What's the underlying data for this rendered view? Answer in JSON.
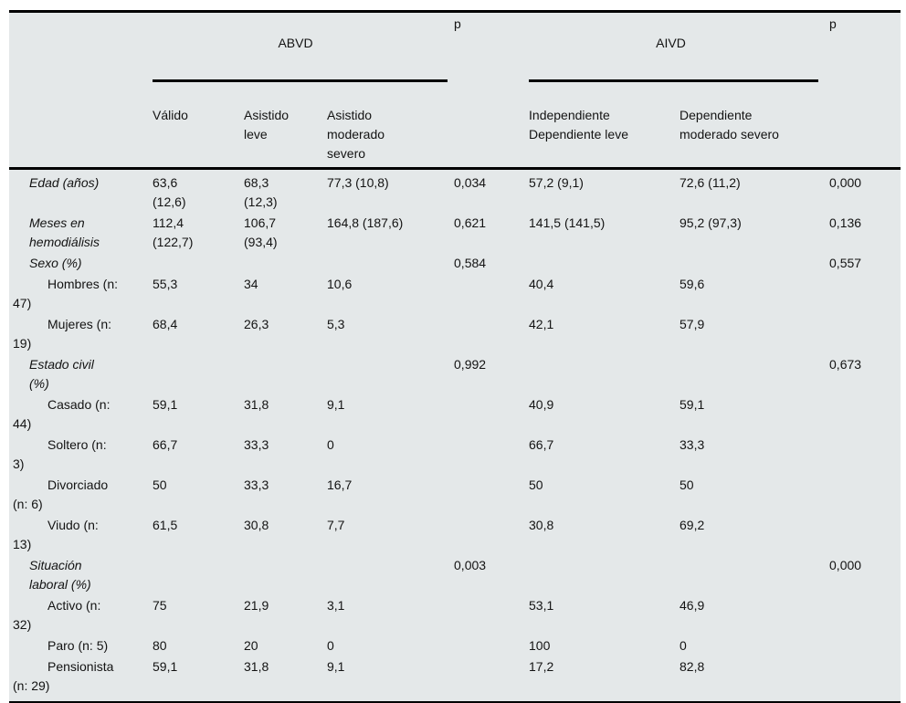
{
  "table": {
    "group_header": {
      "abvd": "ABVD",
      "p_left": "p",
      "aivd": "AIVD",
      "p_right": "p"
    },
    "column_headers": {
      "abvd": [
        "Válido",
        "Asistido\nleve",
        "Asistido\nmoderado\nsevero"
      ],
      "aivd": [
        "Independiente\nDependiente leve",
        "Dependiente\nmoderado severo"
      ]
    },
    "rows": [
      {
        "label": "Edad (años)",
        "variant": "category",
        "cells": [
          "63,6\n(12,6)",
          "68,3\n(12,3)",
          "77,3 (10,8)",
          "0,034",
          "57,2 (9,1)",
          "72,6 (11,2)",
          "0,000"
        ]
      },
      {
        "label": "Meses en\nhemodiálisis",
        "variant": "category",
        "cells": [
          "112,4\n(122,7)",
          "106,7\n(93,4)",
          "164,8 (187,6)",
          "0,621",
          "141,5 (141,5)",
          "95,2 (97,3)",
          "0,136"
        ]
      },
      {
        "label": "Sexo (%)",
        "variant": "category",
        "cells": [
          "",
          "",
          "",
          "0,584",
          "",
          "",
          "0,557"
        ]
      },
      {
        "label": "Hombres (n:\n47)",
        "variant": "item",
        "cells": [
          "55,3",
          "34",
          "10,6",
          "",
          "40,4",
          "59,6",
          ""
        ]
      },
      {
        "label": "Mujeres (n:\n19)",
        "variant": "item",
        "cells": [
          "68,4",
          "26,3",
          "5,3",
          "",
          "42,1",
          "57,9",
          ""
        ]
      },
      {
        "label": "Estado civil\n(%)",
        "variant": "category",
        "cells": [
          "",
          "",
          "",
          "0,992",
          "",
          "",
          "0,673"
        ]
      },
      {
        "label": "Casado (n:\n44)",
        "variant": "item",
        "cells": [
          "59,1",
          "31,8",
          "9,1",
          "",
          "40,9",
          "59,1",
          ""
        ]
      },
      {
        "label": "Soltero (n:\n3)",
        "variant": "item",
        "cells": [
          "66,7",
          "33,3",
          "0",
          "",
          "66,7",
          "33,3",
          ""
        ]
      },
      {
        "label": "Divorciado\n(n: 6)",
        "variant": "item",
        "cells": [
          "50",
          "33,3",
          "16,7",
          "",
          "50",
          "50",
          ""
        ]
      },
      {
        "label": "Viudo (n:\n13)",
        "variant": "item",
        "cells": [
          "61,5",
          "30,8",
          "7,7",
          "",
          "30,8",
          "69,2",
          ""
        ]
      },
      {
        "label": "Situación\nlaboral (%)",
        "variant": "category",
        "cells": [
          "",
          "",
          "",
          "0,003",
          "",
          "",
          "0,000"
        ]
      },
      {
        "label": "Activo (n:\n32)",
        "variant": "item",
        "cells": [
          "75",
          "21,9",
          "3,1",
          "",
          "53,1",
          "46,9",
          ""
        ]
      },
      {
        "label": "Paro (n: 5)",
        "variant": "item",
        "cells": [
          "80",
          "20",
          "0",
          "",
          "100",
          "0",
          ""
        ]
      },
      {
        "label": "Pensionista\n(n: 29)",
        "variant": "item",
        "cells": [
          "59,1",
          "31,8",
          "9,1",
          "",
          "17,2",
          "82,8",
          ""
        ]
      }
    ],
    "colors": {
      "panel_background": "#e4e8e9",
      "rule": "#000000",
      "text": "#131313"
    }
  }
}
